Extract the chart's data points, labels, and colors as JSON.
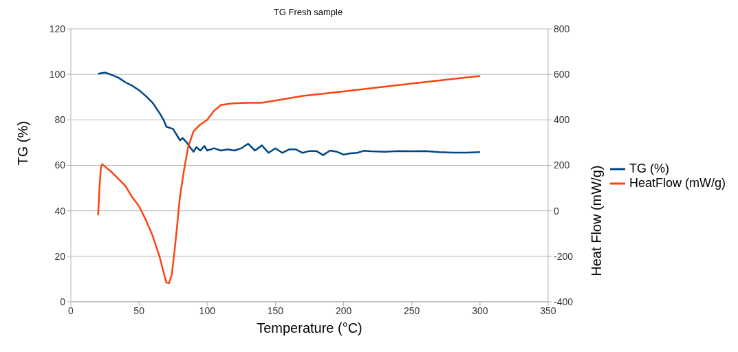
{
  "chart_data": {
    "type": "line",
    "title": "TG Fresh sample",
    "xlabel": "Temperature (°C)",
    "ylabel": "TG (%)",
    "y2label": "Heat Flow (mW/g)",
    "xlim": [
      0,
      350
    ],
    "xticks": [
      0,
      50,
      100,
      150,
      200,
      250,
      300,
      350
    ],
    "ylim": [
      0,
      120
    ],
    "yticks": [
      0,
      20,
      40,
      60,
      80,
      100,
      120
    ],
    "y2lim": [
      -400,
      800
    ],
    "y2ticks": [
      -400,
      -200,
      0,
      200,
      400,
      600,
      800
    ],
    "grid": "y",
    "legend": "right",
    "marker": "none",
    "line_style": "solid",
    "series": [
      {
        "name": "TG (%)",
        "color": "#004586",
        "x": [
          20,
          25,
          30,
          35,
          40,
          45,
          50,
          55,
          60,
          65,
          68,
          70,
          75,
          78,
          80,
          82,
          85,
          88,
          90,
          92,
          95,
          98,
          100,
          105,
          110,
          115,
          120,
          125,
          130,
          135,
          140,
          145,
          150,
          155,
          160,
          165,
          170,
          175,
          180,
          185,
          190,
          195,
          200,
          205,
          210,
          215,
          220,
          230,
          240,
          250,
          260,
          270,
          280,
          290,
          300
        ],
        "values": [
          100.3,
          100.8,
          99.8,
          98.5,
          96.5,
          95,
          93,
          90.5,
          87.5,
          83,
          80,
          77,
          76,
          73,
          71,
          72,
          70,
          67.5,
          66,
          68,
          66.5,
          68.5,
          66.5,
          67.5,
          66.5,
          67,
          66.5,
          67.5,
          69.5,
          66.5,
          68.8,
          65.5,
          67.5,
          65.5,
          67,
          67,
          65.5,
          66.3,
          66.3,
          64.5,
          66.5,
          66,
          64.7,
          65.3,
          65.5,
          66.4,
          66.2,
          66,
          66.3,
          66.2,
          66.3,
          65.8,
          65.6,
          65.6,
          65.8
        ]
      },
      {
        "name": "HeatFlow (mW/g)",
        "color": "#ff420e",
        "axis": "y2",
        "x": [
          20,
          21,
          22,
          23,
          25,
          30,
          35,
          40,
          45,
          50,
          55,
          60,
          65,
          68,
          70,
          72,
          74,
          76,
          78,
          80,
          83,
          86,
          90,
          95,
          100,
          105,
          110,
          115,
          120,
          130,
          140,
          150,
          170,
          200,
          250,
          300
        ],
        "values": [
          -20,
          100,
          190,
          205,
          195,
          170,
          140,
          110,
          60,
          20,
          -40,
          -110,
          -200,
          -270,
          -315,
          -318,
          -280,
          -180,
          -60,
          60,
          180,
          280,
          350,
          380,
          400,
          440,
          465,
          470,
          473,
          475,
          475,
          485,
          505,
          525,
          560,
          593
        ]
      }
    ]
  }
}
